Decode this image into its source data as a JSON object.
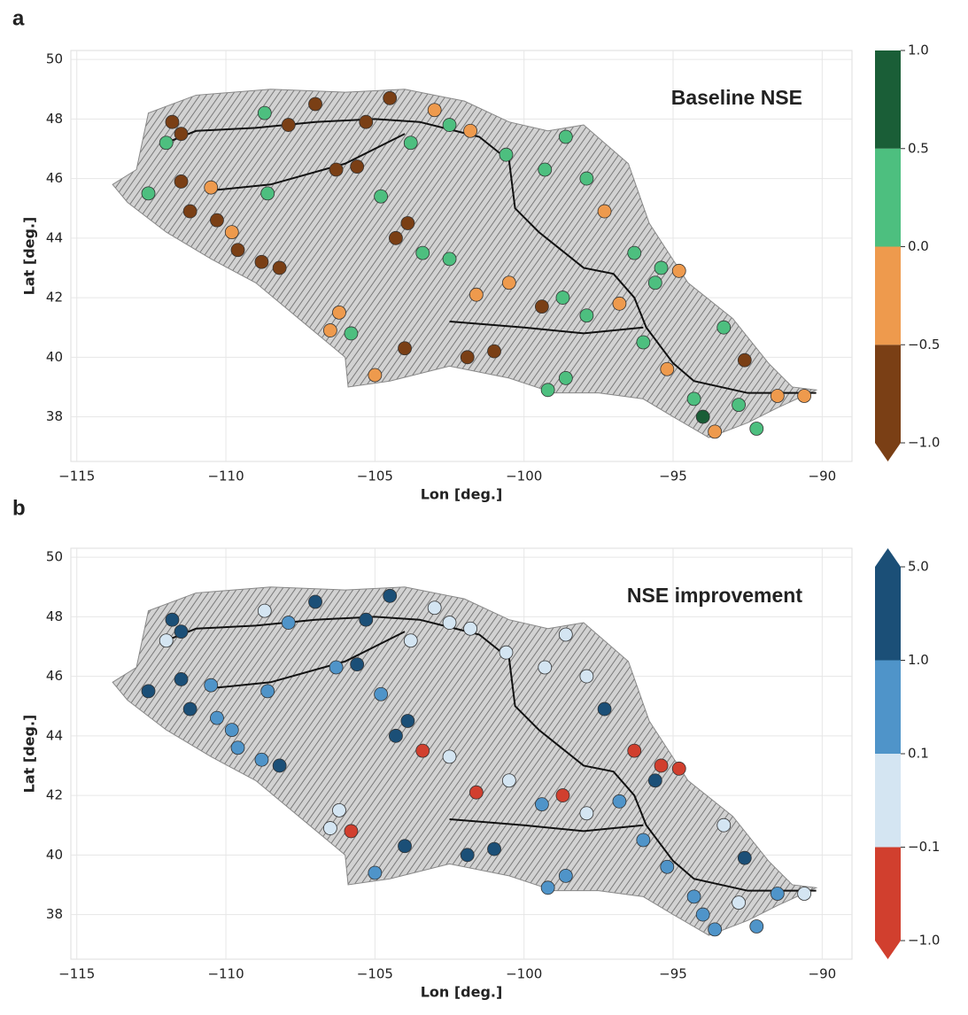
{
  "chart_data": [
    {
      "type": "scatter",
      "panel": "a",
      "title": "Baseline NSE",
      "xlabel": "Lon [deg.]",
      "ylabel": "Lat [deg.]",
      "xlim": [
        -115.2,
        -89
      ],
      "ylim": [
        36.5,
        50.3
      ],
      "xticks": [
        {
          "value": -115,
          "label": "−115"
        },
        {
          "value": -110,
          "label": "−110"
        },
        {
          "value": -105,
          "label": "−105"
        },
        {
          "value": -100,
          "label": "−100"
        },
        {
          "value": -95,
          "label": "−95"
        },
        {
          "value": -90,
          "label": "−90"
        }
      ],
      "yticks": [
        38,
        40,
        42,
        44,
        46,
        48,
        50
      ],
      "grid": true,
      "colorbar_ticks": [
        {
          "value": -1,
          "label": "−1.0"
        },
        {
          "value": -0.5,
          "label": "−0.5"
        },
        {
          "value": 0,
          "label": "0.0"
        },
        {
          "value": 0.5,
          "label": "0.5"
        },
        {
          "value": 1,
          "label": "1.0"
        }
      ],
      "colorbar_colors": [
        "#7a3f15",
        "#ee9a4d",
        "#4dbf7f",
        "#1a5e37"
      ],
      "colorbar_extend": "min",
      "x": [
        -111.8,
        -111.5,
        -112.0,
        -112.6,
        -111.5,
        -111.2,
        -110.3,
        -110.5,
        -109.8,
        -108.6,
        -108.7,
        -107.9,
        -107.0,
        -106.3,
        -105.6,
        -105.3,
        -104.5,
        -103.8,
        -103.0,
        -102.5,
        -101.8,
        -100.6,
        -99.3,
        -98.6,
        -97.9,
        -97.3,
        -96.3,
        -95.4,
        -104.8,
        -104.3,
        -103.9,
        -103.4,
        -102.5,
        -101.6,
        -100.5,
        -99.4,
        -98.7,
        -97.9,
        -96.8,
        -96.0,
        -95.2,
        -94.3,
        -93.6,
        -92.8,
        -92.2,
        -90.6,
        -91.5,
        -93.3,
        -92.6,
        -101.9,
        -101.0,
        -99.2,
        -98.6,
        -104.0,
        -105.8,
        -105.0,
        -106.2,
        -106.5,
        -108.2,
        -108.8,
        -109.6,
        -94.0,
        -95.6,
        -94.8
      ],
      "y": [
        47.9,
        47.5,
        47.2,
        45.5,
        45.9,
        44.9,
        44.6,
        45.7,
        44.2,
        45.5,
        48.2,
        47.8,
        48.5,
        46.3,
        46.4,
        47.9,
        48.7,
        47.2,
        48.3,
        47.8,
        47.6,
        46.8,
        46.3,
        47.4,
        46.0,
        44.9,
        43.5,
        43.0,
        45.4,
        44.0,
        44.5,
        43.5,
        43.3,
        42.1,
        42.5,
        41.7,
        42.0,
        41.4,
        41.8,
        40.5,
        39.6,
        38.6,
        37.5,
        38.4,
        37.6,
        38.7,
        38.7,
        41.0,
        39.9,
        40.0,
        40.2,
        38.9,
        39.3,
        40.3,
        40.8,
        39.4,
        41.5,
        40.9,
        43.0,
        43.2,
        43.6,
        38.0,
        42.5,
        42.9
      ],
      "values": [
        -0.8,
        -0.8,
        0.3,
        0.3,
        -0.8,
        -0.8,
        -0.8,
        -0.3,
        -0.3,
        0.3,
        0.3,
        -0.8,
        -0.8,
        -0.8,
        -0.8,
        -0.8,
        -0.8,
        0.3,
        -0.3,
        0.3,
        -0.3,
        0.3,
        0.3,
        0.3,
        0.3,
        -0.3,
        0.3,
        0.3,
        0.3,
        -0.8,
        -0.8,
        0.3,
        0.3,
        -0.3,
        -0.3,
        -0.8,
        0.3,
        0.3,
        -0.3,
        0.3,
        -0.3,
        0.3,
        -0.3,
        0.3,
        0.3,
        -0.3,
        -0.3,
        0.3,
        -0.8,
        -0.8,
        -0.8,
        0.3,
        0.3,
        -0.8,
        0.3,
        -0.3,
        -0.3,
        -0.3,
        -0.8,
        -0.8,
        -0.8,
        0.8,
        0.3,
        -0.3
      ]
    },
    {
      "type": "scatter",
      "panel": "b",
      "title": "NSE improvement",
      "xlabel": "Lon [deg.]",
      "ylabel": "Lat [deg.]",
      "xlim": [
        -115.2,
        -89
      ],
      "ylim": [
        36.5,
        50.3
      ],
      "xticks": [
        {
          "value": -115,
          "label": "−115"
        },
        {
          "value": -110,
          "label": "−110"
        },
        {
          "value": -105,
          "label": "−105"
        },
        {
          "value": -100,
          "label": "−100"
        },
        {
          "value": -95,
          "label": "−95"
        },
        {
          "value": -90,
          "label": "−90"
        }
      ],
      "yticks": [
        38,
        40,
        42,
        44,
        46,
        48,
        50
      ],
      "grid": true,
      "colorbar_ticks": [
        {
          "value": -1,
          "label": "−1.0"
        },
        {
          "value": -0.1,
          "label": "−0.1"
        },
        {
          "value": 0.1,
          "label": "0.1"
        },
        {
          "value": 1,
          "label": "1.0"
        },
        {
          "value": 5,
          "label": "5.0"
        }
      ],
      "colorbar_colors": [
        "#d13f2e",
        "#d4e5f2",
        "#4f94c9",
        "#1b4f77"
      ],
      "colorbar_extend": "both",
      "x": [
        -111.8,
        -111.5,
        -112.0,
        -112.6,
        -111.5,
        -111.2,
        -110.3,
        -110.5,
        -109.8,
        -108.6,
        -108.7,
        -107.9,
        -107.0,
        -106.3,
        -105.6,
        -105.3,
        -104.5,
        -103.8,
        -103.0,
        -102.5,
        -101.8,
        -100.6,
        -99.3,
        -98.6,
        -97.9,
        -97.3,
        -96.3,
        -95.4,
        -104.8,
        -104.3,
        -103.9,
        -103.4,
        -102.5,
        -101.6,
        -100.5,
        -99.4,
        -98.7,
        -97.9,
        -96.8,
        -96.0,
        -95.2,
        -94.3,
        -93.6,
        -92.8,
        -92.2,
        -90.6,
        -91.5,
        -93.3,
        -92.6,
        -101.9,
        -101.0,
        -99.2,
        -98.6,
        -104.0,
        -105.8,
        -105.0,
        -106.2,
        -106.5,
        -108.2,
        -108.8,
        -109.6,
        -94.0,
        -95.6,
        -94.8
      ],
      "y": [
        47.9,
        47.5,
        47.2,
        45.5,
        45.9,
        44.9,
        44.6,
        45.7,
        44.2,
        45.5,
        48.2,
        47.8,
        48.5,
        46.3,
        46.4,
        47.9,
        48.7,
        47.2,
        48.3,
        47.8,
        47.6,
        46.8,
        46.3,
        47.4,
        46.0,
        44.9,
        43.5,
        43.0,
        45.4,
        44.0,
        44.5,
        43.5,
        43.3,
        42.1,
        42.5,
        41.7,
        42.0,
        41.4,
        41.8,
        40.5,
        39.6,
        38.6,
        37.5,
        38.4,
        37.6,
        38.7,
        38.7,
        41.0,
        39.9,
        40.0,
        40.2,
        38.9,
        39.3,
        40.3,
        40.8,
        39.4,
        41.5,
        40.9,
        43.0,
        43.2,
        43.6,
        38.0,
        42.5,
        42.9
      ],
      "values": [
        2,
        1.5,
        0,
        2,
        2,
        2,
        0.5,
        0.5,
        0.5,
        0.5,
        0,
        0.5,
        2,
        0.5,
        2,
        2,
        2,
        0,
        0,
        0,
        0,
        0,
        0,
        0,
        0,
        2,
        -0.5,
        -0.5,
        0.5,
        2,
        2,
        -0.5,
        0,
        -0.5,
        0,
        0.5,
        -0.5,
        0,
        0.5,
        0.5,
        0.5,
        0.5,
        0.5,
        0,
        0.5,
        0,
        0.5,
        0,
        2,
        2,
        2,
        0.5,
        0.5,
        2,
        -0.5,
        0.5,
        0,
        0,
        2,
        0.5,
        0.5,
        0.5,
        2,
        -0.5
      ]
    }
  ]
}
